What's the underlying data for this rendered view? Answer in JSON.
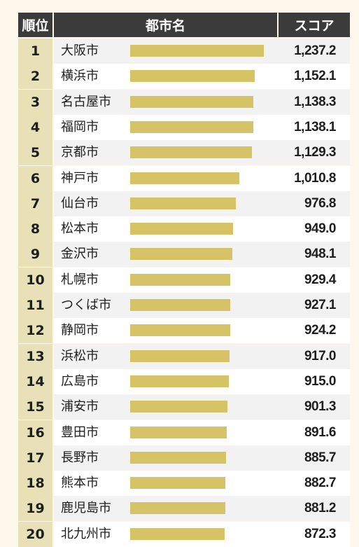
{
  "header": {
    "rank_label": "順位",
    "city_label": "都市名",
    "score_label": "スコア"
  },
  "colors": {
    "bar": "#d6c365",
    "rank_bg": "#e8e0b6",
    "header_bg": "#3b3b3b"
  },
  "chart_data": {
    "type": "bar",
    "orientation": "horizontal",
    "categories": [
      "大阪市",
      "横浜市",
      "名古屋市",
      "福岡市",
      "京都市",
      "神戸市",
      "仙台市",
      "松本市",
      "金沢市",
      "札幌市",
      "つくば市",
      "静岡市",
      "浜松市",
      "広島市",
      "浦安市",
      "豊田市",
      "長野市",
      "熊本市",
      "鹿児島市",
      "北九州市"
    ],
    "ranks": [
      "1",
      "2",
      "3",
      "4",
      "5",
      "6",
      "7",
      "8",
      "9",
      "10",
      "11",
      "12",
      "13",
      "14",
      "15",
      "16",
      "17",
      "18",
      "19",
      "20"
    ],
    "values": [
      1237.2,
      1152.1,
      1138.3,
      1138.1,
      1129.3,
      1010.8,
      976.8,
      949.0,
      948.1,
      929.4,
      927.1,
      924.2,
      917.0,
      915.0,
      901.3,
      891.6,
      885.7,
      882.7,
      881.2,
      872.3
    ],
    "value_labels": [
      "1,237.2",
      "1,152.1",
      "1,138.3",
      "1,138.1",
      "1,129.3",
      "1,010.8",
      "976.8",
      "949.0",
      "948.1",
      "929.4",
      "927.1",
      "924.2",
      "917.0",
      "915.0",
      "901.3",
      "891.6",
      "885.7",
      "882.7",
      "881.2",
      "872.3"
    ]
  }
}
